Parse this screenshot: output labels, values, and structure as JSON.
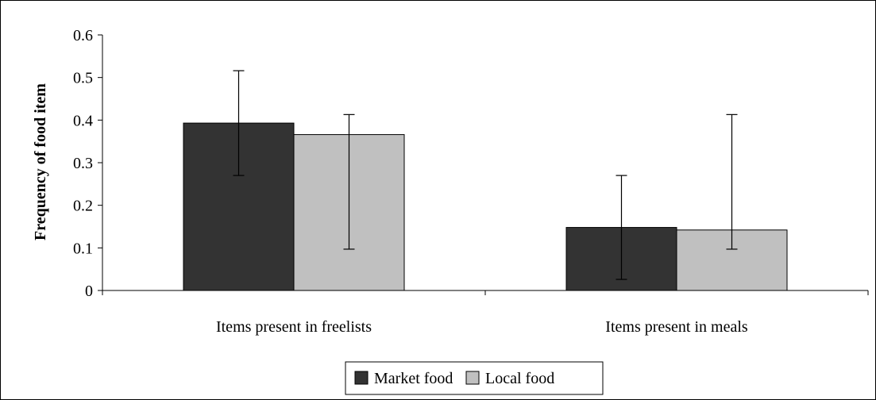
{
  "chart_data": {
    "type": "bar",
    "title": "",
    "xlabel": "",
    "ylabel": "Frequency of food item",
    "ylim": [
      0,
      0.6
    ],
    "yticks": [
      0,
      0.1,
      0.2,
      0.3,
      0.4,
      0.5,
      0.6
    ],
    "ytick_labels": [
      "0",
      "0.1",
      "0.2",
      "0.3",
      "0.4",
      "0.5",
      "0.6"
    ],
    "categories": [
      "Items present in freelists",
      "Items present in meals"
    ],
    "series": [
      {
        "name": "Market food",
        "color": "#333333",
        "values": [
          0.393,
          0.148
        ],
        "error_low": [
          0.27,
          0.026
        ],
        "error_high": [
          0.516,
          0.27
        ]
      },
      {
        "name": "Local food",
        "color": "#c0c0c0",
        "values": [
          0.366,
          0.142
        ],
        "error_low": [
          0.097,
          0.097
        ],
        "error_high": [
          0.413,
          0.413
        ]
      }
    ],
    "grid": false,
    "legend_position": "bottom"
  }
}
